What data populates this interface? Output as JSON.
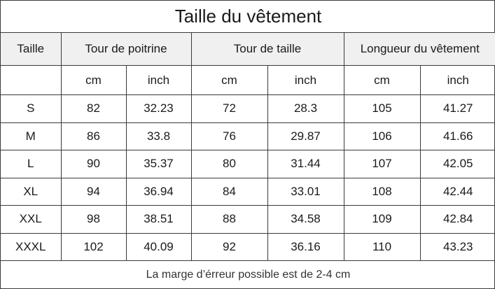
{
  "title": "Taille du vêtement",
  "header": {
    "size": "Taille",
    "chest": "Tour de poitrine",
    "waist": "Tour de taille",
    "length": "Longueur du vêtement"
  },
  "units": [
    "cm",
    "inch",
    "cm",
    "inch",
    "cm",
    "inch"
  ],
  "rows": [
    {
      "size": "S",
      "chest_cm": "82",
      "chest_in": "32.23",
      "waist_cm": "72",
      "waist_in": "28.3",
      "length_cm": "105",
      "length_in": "41.27"
    },
    {
      "size": "M",
      "chest_cm": "86",
      "chest_in": "33.8",
      "waist_cm": "76",
      "waist_in": "29.87",
      "length_cm": "106",
      "length_in": "41.66"
    },
    {
      "size": "L",
      "chest_cm": "90",
      "chest_in": "35.37",
      "waist_cm": "80",
      "waist_in": "31.44",
      "length_cm": "107",
      "length_in": "42.05"
    },
    {
      "size": "XL",
      "chest_cm": "94",
      "chest_in": "36.94",
      "waist_cm": "84",
      "waist_in": "33.01",
      "length_cm": "108",
      "length_in": "42.44"
    },
    {
      "size": "XXL",
      "chest_cm": "98",
      "chest_in": "38.51",
      "waist_cm": "88",
      "waist_in": "34.58",
      "length_cm": "109",
      "length_in": "42.84"
    },
    {
      "size": "XXXL",
      "chest_cm": "102",
      "chest_in": "40.09",
      "waist_cm": "92",
      "waist_in": "36.16",
      "length_cm": "110",
      "length_in": "43.23"
    }
  ],
  "footer": "La marge d’érreur possible est de 2-4 cm",
  "colors": {
    "header_background": "#f0f0f0",
    "border": "#3a3a3a"
  }
}
